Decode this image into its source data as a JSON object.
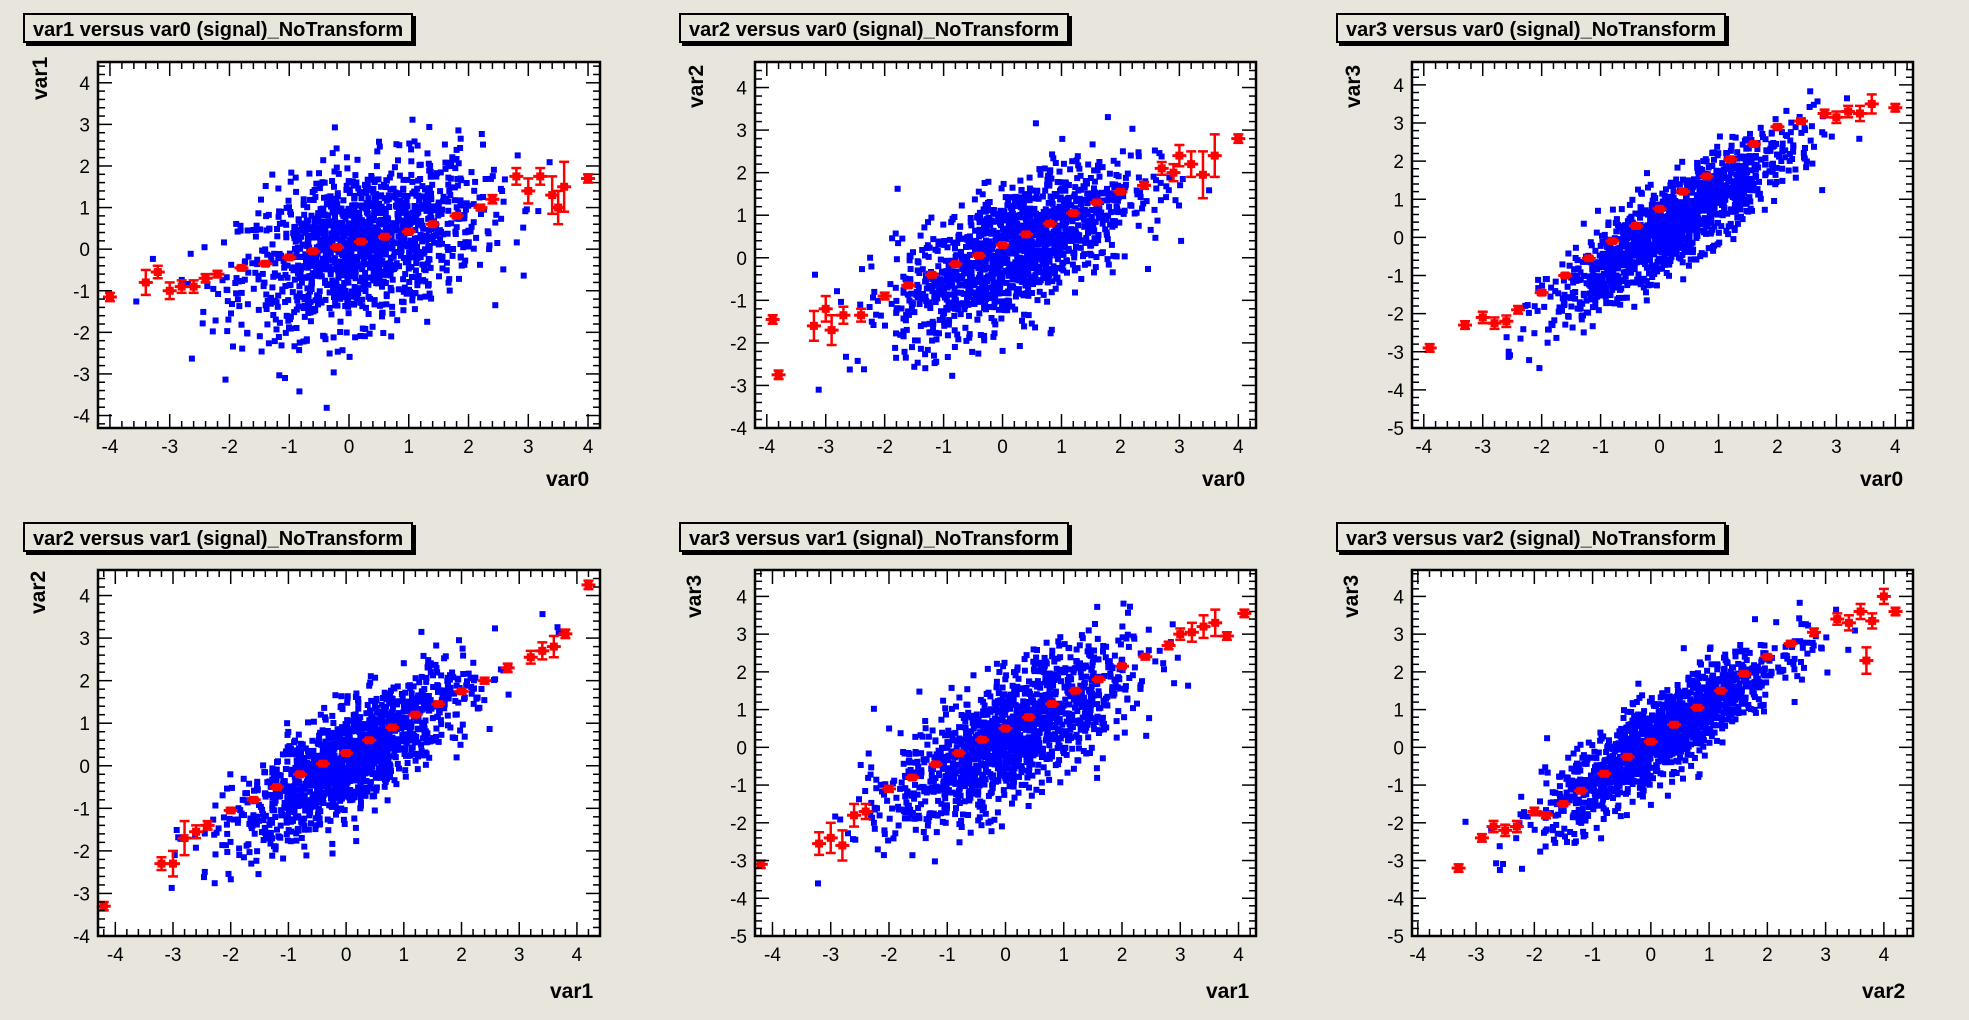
{
  "colors": {
    "background": "#e8e6dc",
    "points": "#0000ff",
    "profile": "#ff0000",
    "frame": "#000000"
  },
  "chart_data": [
    {
      "type": "scatter",
      "title": "var1 versus var0 (signal)_NoTransform",
      "xlabel": "var0",
      "ylabel": "var1",
      "xlim": [
        -4.2,
        4.2
      ],
      "ylim": [
        -4.3,
        4.5
      ],
      "xticks": [
        "-4",
        "-3",
        "-2",
        "-1",
        "0",
        "1",
        "2",
        "3",
        "4"
      ],
      "yticks": [
        "-4",
        "-3",
        "-2",
        "-1",
        "0",
        "1",
        "2",
        "3",
        "4"
      ],
      "cloud": {
        "mean": [
          0.2,
          0.1
        ],
        "sd": [
          1.0,
          1.0
        ],
        "corr": 0.4
      },
      "profile": [
        [
          -4.0,
          -1.15,
          0.1
        ],
        [
          -3.4,
          -0.8,
          0.3
        ],
        [
          -3.2,
          -0.55,
          0.15
        ],
        [
          -3.0,
          -1.0,
          0.2
        ],
        [
          -2.8,
          -0.9,
          0.15
        ],
        [
          -2.6,
          -0.9,
          0.15
        ],
        [
          -2.4,
          -0.7,
          0.1
        ],
        [
          -2.2,
          -0.6,
          0.08
        ],
        [
          -1.8,
          -0.45,
          0.05
        ],
        [
          -1.4,
          -0.35,
          0.04
        ],
        [
          -1.0,
          -0.2,
          0.03
        ],
        [
          -0.6,
          -0.05,
          0.03
        ],
        [
          -0.2,
          0.05,
          0.03
        ],
        [
          0.2,
          0.18,
          0.03
        ],
        [
          0.6,
          0.3,
          0.03
        ],
        [
          1.0,
          0.42,
          0.03
        ],
        [
          1.4,
          0.6,
          0.04
        ],
        [
          1.8,
          0.8,
          0.05
        ],
        [
          2.2,
          1.0,
          0.07
        ],
        [
          2.4,
          1.2,
          0.1
        ],
        [
          2.8,
          1.75,
          0.2
        ],
        [
          3.0,
          1.4,
          0.3
        ],
        [
          3.2,
          1.75,
          0.2
        ],
        [
          3.4,
          1.3,
          0.45
        ],
        [
          3.5,
          1.0,
          0.4
        ],
        [
          3.6,
          1.5,
          0.6
        ],
        [
          4.0,
          1.7,
          0.1
        ]
      ]
    },
    {
      "type": "scatter",
      "title": "var2 versus var0 (signal)_NoTransform",
      "xlabel": "var0",
      "ylabel": "var2",
      "xlim": [
        -4.2,
        4.3
      ],
      "ylim": [
        -4.0,
        4.6
      ],
      "xticks": [
        "-4",
        "-3",
        "-2",
        "-1",
        "0",
        "1",
        "2",
        "3",
        "4"
      ],
      "yticks": [
        "-4",
        "-3",
        "-2",
        "-1",
        "0",
        "1",
        "2",
        "3",
        "4"
      ],
      "cloud": {
        "mean": [
          0.2,
          0.2
        ],
        "sd": [
          1.0,
          1.0
        ],
        "corr": 0.65
      },
      "profile": [
        [
          -3.9,
          -1.45,
          0.1
        ],
        [
          -3.8,
          -2.75,
          0.1
        ],
        [
          -3.2,
          -1.6,
          0.35
        ],
        [
          -3.0,
          -1.2,
          0.3
        ],
        [
          -2.9,
          -1.7,
          0.35
        ],
        [
          -2.7,
          -1.35,
          0.2
        ],
        [
          -2.4,
          -1.35,
          0.15
        ],
        [
          -2.0,
          -0.9,
          0.08
        ],
        [
          -1.6,
          -0.65,
          0.05
        ],
        [
          -1.2,
          -0.4,
          0.04
        ],
        [
          -0.8,
          -0.15,
          0.03
        ],
        [
          -0.4,
          0.05,
          0.03
        ],
        [
          0.0,
          0.3,
          0.03
        ],
        [
          0.4,
          0.55,
          0.03
        ],
        [
          0.8,
          0.8,
          0.03
        ],
        [
          1.2,
          1.05,
          0.03
        ],
        [
          1.6,
          1.3,
          0.04
        ],
        [
          2.0,
          1.55,
          0.05
        ],
        [
          2.4,
          1.7,
          0.08
        ],
        [
          2.7,
          2.1,
          0.15
        ],
        [
          2.9,
          2.0,
          0.2
        ],
        [
          3.0,
          2.4,
          0.25
        ],
        [
          3.2,
          2.2,
          0.3
        ],
        [
          3.4,
          1.95,
          0.55
        ],
        [
          3.6,
          2.4,
          0.5
        ],
        [
          4.0,
          2.8,
          0.1
        ]
      ]
    },
    {
      "type": "scatter",
      "title": "var3 versus var0 (signal)_NoTransform",
      "xlabel": "var0",
      "ylabel": "var3",
      "xlim": [
        -4.2,
        4.3
      ],
      "ylim": [
        -5.0,
        4.6
      ],
      "xticks": [
        "-4",
        "-3",
        "-2",
        "-1",
        "0",
        "1",
        "2",
        "3",
        "4"
      ],
      "yticks": [
        "-5",
        "-4",
        "-3",
        "-2",
        "-1",
        "0",
        "1",
        "2",
        "3",
        "4"
      ],
      "cloud": {
        "mean": [
          0.2,
          0.3
        ],
        "sd": [
          1.0,
          1.15
        ],
        "corr": 0.88
      },
      "profile": [
        [
          -3.9,
          -2.9,
          0.1
        ],
        [
          -3.3,
          -2.3,
          0.1
        ],
        [
          -3.0,
          -2.1,
          0.15
        ],
        [
          -2.8,
          -2.25,
          0.15
        ],
        [
          -2.6,
          -2.2,
          0.15
        ],
        [
          -2.4,
          -1.9,
          0.1
        ],
        [
          -2.0,
          -1.45,
          0.06
        ],
        [
          -1.6,
          -1.0,
          0.04
        ],
        [
          -1.2,
          -0.55,
          0.03
        ],
        [
          -0.8,
          -0.1,
          0.03
        ],
        [
          -0.4,
          0.3,
          0.03
        ],
        [
          0.0,
          0.75,
          0.03
        ],
        [
          0.4,
          1.2,
          0.03
        ],
        [
          0.8,
          1.6,
          0.03
        ],
        [
          1.2,
          2.05,
          0.03
        ],
        [
          1.6,
          2.45,
          0.04
        ],
        [
          2.0,
          2.9,
          0.05
        ],
        [
          2.4,
          3.05,
          0.07
        ],
        [
          2.8,
          3.25,
          0.1
        ],
        [
          3.0,
          3.15,
          0.15
        ],
        [
          3.2,
          3.3,
          0.15
        ],
        [
          3.4,
          3.25,
          0.2
        ],
        [
          3.6,
          3.5,
          0.25
        ],
        [
          4.0,
          3.4,
          0.1
        ]
      ]
    },
    {
      "type": "scatter",
      "title": "var2 versus var1 (signal)_NoTransform",
      "xlabel": "var1",
      "ylabel": "var2",
      "xlim": [
        -4.3,
        4.4
      ],
      "ylim": [
        -4.0,
        4.6
      ],
      "xticks": [
        "-4",
        "-3",
        "-2",
        "-1",
        "0",
        "1",
        "2",
        "3",
        "4"
      ],
      "yticks": [
        "-4",
        "-3",
        "-2",
        "-1",
        "0",
        "1",
        "2",
        "3",
        "4"
      ],
      "cloud": {
        "mean": [
          0.1,
          0.2
        ],
        "sd": [
          1.0,
          1.0
        ],
        "corr": 0.8
      },
      "profile": [
        [
          -4.2,
          -3.3,
          0.1
        ],
        [
          -3.2,
          -2.3,
          0.15
        ],
        [
          -3.0,
          -2.3,
          0.3
        ],
        [
          -2.8,
          -1.7,
          0.4
        ],
        [
          -2.6,
          -1.55,
          0.15
        ],
        [
          -2.4,
          -1.4,
          0.1
        ],
        [
          -2.0,
          -1.05,
          0.06
        ],
        [
          -1.6,
          -0.8,
          0.04
        ],
        [
          -1.2,
          -0.5,
          0.03
        ],
        [
          -0.8,
          -0.2,
          0.03
        ],
        [
          -0.4,
          0.05,
          0.03
        ],
        [
          0.0,
          0.3,
          0.03
        ],
        [
          0.4,
          0.6,
          0.03
        ],
        [
          0.8,
          0.9,
          0.03
        ],
        [
          1.2,
          1.2,
          0.03
        ],
        [
          1.6,
          1.45,
          0.04
        ],
        [
          2.0,
          1.75,
          0.05
        ],
        [
          2.4,
          2.0,
          0.07
        ],
        [
          2.8,
          2.3,
          0.1
        ],
        [
          3.2,
          2.55,
          0.15
        ],
        [
          3.4,
          2.7,
          0.2
        ],
        [
          3.6,
          2.8,
          0.25
        ],
        [
          3.8,
          3.1,
          0.1
        ],
        [
          4.2,
          4.25,
          0.1
        ]
      ]
    },
    {
      "type": "scatter",
      "title": "var3 versus var1 (signal)_NoTransform",
      "xlabel": "var1",
      "ylabel": "var3",
      "xlim": [
        -4.3,
        4.3
      ],
      "ylim": [
        -5.0,
        4.7
      ],
      "xticks": [
        "-4",
        "-3",
        "-2",
        "-1",
        "0",
        "1",
        "2",
        "3",
        "4"
      ],
      "yticks": [
        "-5",
        "-4",
        "-3",
        "-2",
        "-1",
        "0",
        "1",
        "2",
        "3",
        "4"
      ],
      "cloud": {
        "mean": [
          0.1,
          0.3
        ],
        "sd": [
          1.0,
          1.15
        ],
        "corr": 0.7
      },
      "profile": [
        [
          -4.2,
          -3.1,
          0.1
        ],
        [
          -3.2,
          -2.55,
          0.3
        ],
        [
          -3.0,
          -2.4,
          0.4
        ],
        [
          -2.8,
          -2.6,
          0.4
        ],
        [
          -2.6,
          -1.8,
          0.3
        ],
        [
          -2.4,
          -1.7,
          0.2
        ],
        [
          -2.0,
          -1.1,
          0.08
        ],
        [
          -1.6,
          -0.8,
          0.05
        ],
        [
          -1.2,
          -0.45,
          0.04
        ],
        [
          -0.8,
          -0.15,
          0.03
        ],
        [
          -0.4,
          0.2,
          0.03
        ],
        [
          0.0,
          0.5,
          0.03
        ],
        [
          0.4,
          0.8,
          0.03
        ],
        [
          0.8,
          1.15,
          0.03
        ],
        [
          1.2,
          1.5,
          0.03
        ],
        [
          1.6,
          1.8,
          0.04
        ],
        [
          2.0,
          2.15,
          0.05
        ],
        [
          2.4,
          2.4,
          0.07
        ],
        [
          2.8,
          2.7,
          0.1
        ],
        [
          3.0,
          3.0,
          0.15
        ],
        [
          3.2,
          3.05,
          0.25
        ],
        [
          3.4,
          3.2,
          0.3
        ],
        [
          3.6,
          3.3,
          0.35
        ],
        [
          3.8,
          2.95,
          0.1
        ],
        [
          4.1,
          3.55,
          0.1
        ]
      ]
    },
    {
      "type": "scatter",
      "title": "var3 versus var2 (signal)_NoTransform",
      "xlabel": "var2",
      "ylabel": "var3",
      "xlim": [
        -4.1,
        4.5
      ],
      "ylim": [
        -5.0,
        4.7
      ],
      "xticks": [
        "-4",
        "-3",
        "-2",
        "-1",
        "0",
        "1",
        "2",
        "3",
        "4"
      ],
      "yticks": [
        "-5",
        "-4",
        "-3",
        "-2",
        "-1",
        "0",
        "1",
        "2",
        "3",
        "4"
      ],
      "cloud": {
        "mean": [
          0.2,
          0.3
        ],
        "sd": [
          1.0,
          1.15
        ],
        "corr": 0.88
      },
      "profile": [
        [
          -3.3,
          -3.2,
          0.1
        ],
        [
          -2.9,
          -2.4,
          0.1
        ],
        [
          -2.7,
          -2.1,
          0.15
        ],
        [
          -2.5,
          -2.2,
          0.15
        ],
        [
          -2.3,
          -2.1,
          0.15
        ],
        [
          -2.0,
          -1.7,
          0.1
        ],
        [
          -1.8,
          -1.8,
          0.08
        ],
        [
          -1.5,
          -1.5,
          0.05
        ],
        [
          -1.2,
          -1.15,
          0.04
        ],
        [
          -0.8,
          -0.7,
          0.03
        ],
        [
          -0.4,
          -0.25,
          0.03
        ],
        [
          0.0,
          0.15,
          0.03
        ],
        [
          0.4,
          0.6,
          0.03
        ],
        [
          0.8,
          1.05,
          0.03
        ],
        [
          1.2,
          1.5,
          0.03
        ],
        [
          1.6,
          1.95,
          0.04
        ],
        [
          2.0,
          2.4,
          0.05
        ],
        [
          2.4,
          2.75,
          0.07
        ],
        [
          2.8,
          3.05,
          0.1
        ],
        [
          3.2,
          3.4,
          0.15
        ],
        [
          3.4,
          3.3,
          0.2
        ],
        [
          3.6,
          3.6,
          0.2
        ],
        [
          3.7,
          2.3,
          0.35
        ],
        [
          3.8,
          3.35,
          0.2
        ],
        [
          4.0,
          4.0,
          0.2
        ],
        [
          4.2,
          3.6,
          0.1
        ]
      ]
    }
  ]
}
